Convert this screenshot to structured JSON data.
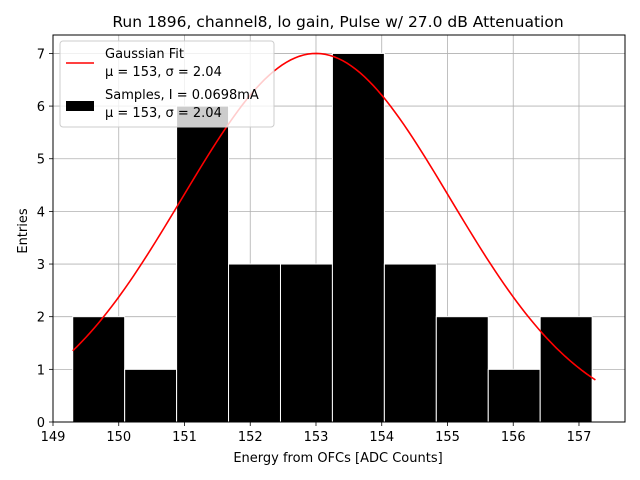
{
  "chart_data": {
    "type": "bar",
    "title": "Run 1896, channel8, lo gain, Pulse w/ 27.0 dB Attenuation",
    "xlabel": "Energy from OFCs [ADC Counts]",
    "ylabel": "Entries",
    "xlim": [
      149.0,
      157.7
    ],
    "ylim": [
      0,
      7.35
    ],
    "x_ticks": [
      "149",
      "150",
      "151",
      "152",
      "153",
      "154",
      "155",
      "156",
      "157"
    ],
    "y_ticks": [
      "0",
      "1",
      "2",
      "3",
      "4",
      "5",
      "6",
      "7"
    ],
    "grid": true,
    "legend_placement": "top-left",
    "histogram": {
      "name": "Samples, I = 0.0698mA",
      "stats": "μ = 153, σ = 2.04",
      "color": "#000000",
      "edge_color": "#ffffff",
      "bin_edges": [
        149.3,
        150.09,
        150.88,
        151.67,
        152.46,
        153.25,
        154.04,
        154.83,
        155.62,
        156.41,
        157.2
      ],
      "counts": [
        2,
        1,
        6,
        3,
        3,
        7,
        3,
        2,
        1,
        2
      ]
    },
    "fit": {
      "name": "Gaussian Fit",
      "stats": "μ = 153, σ = 2.04",
      "color": "#ff0000",
      "mu": 153.0,
      "sigma": 2.04,
      "amplitude": 7.0,
      "x_range": [
        149.3,
        157.25
      ]
    }
  }
}
